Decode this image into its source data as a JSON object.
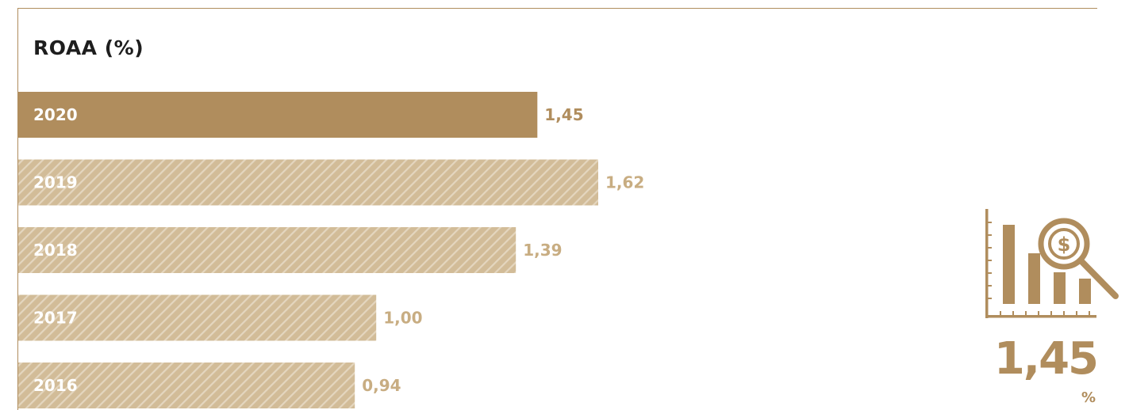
{
  "colors": {
    "accent": "#b08d5d",
    "muted": "#d2bc98",
    "muted_text": "#c8ad82",
    "title": "#1e1e1e"
  },
  "chart_data": {
    "type": "bar",
    "orientation": "horizontal",
    "title": "ROAA (%)",
    "categories": [
      "2020",
      "2019",
      "2018",
      "2017",
      "2016"
    ],
    "values": [
      1.45,
      1.62,
      1.39,
      1.0,
      0.94
    ],
    "value_labels": [
      "1,45",
      "1,62",
      "1,39",
      "1,00",
      "0,94"
    ],
    "highlight": "2020",
    "xlim": [
      0,
      1.62
    ],
    "grid": false,
    "legend": "none"
  },
  "kpi": {
    "value": "1,45",
    "unit": "%",
    "icon": "bar-chart-dollar-magnifier-icon"
  }
}
